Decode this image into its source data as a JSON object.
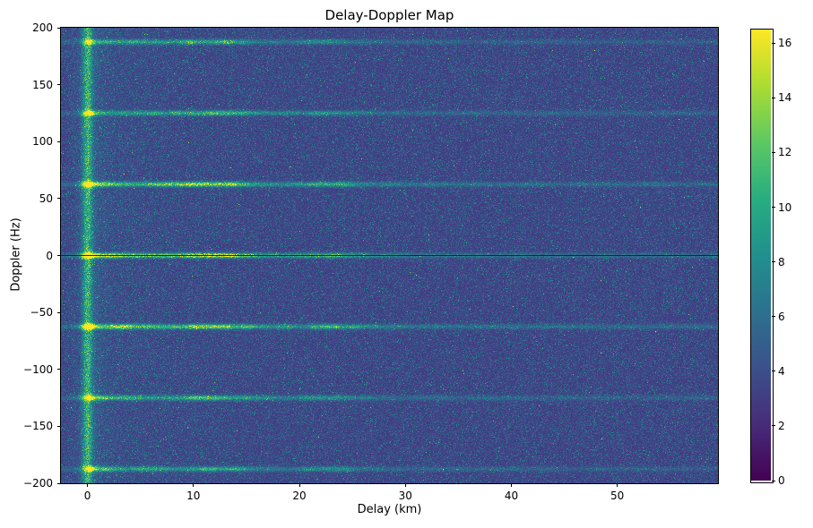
{
  "chart_data": {
    "type": "heatmap",
    "title": "Delay-Doppler Map",
    "xlabel": "Delay (km)",
    "ylabel": "Doppler (Hz)",
    "x_range": [
      -2.5,
      59.5
    ],
    "y_range": [
      -200,
      200
    ],
    "clim": [
      0,
      16.5
    ],
    "colormap": "viridis",
    "x_ticks": [
      0,
      10,
      20,
      30,
      40,
      50
    ],
    "y_ticks": [
      200,
      150,
      100,
      50,
      0,
      -50,
      -100,
      -150,
      -200
    ],
    "colorbar_ticks": [
      0,
      2,
      4,
      6,
      8,
      10,
      12,
      14,
      16
    ],
    "noise_floor_mean": 4.0,
    "vertical_stripe_delay_km": 0,
    "zero_doppler_null": true,
    "doppler_lines": [
      {
        "f": 187.5,
        "amp": 6.2,
        "inter": 5.5
      },
      {
        "f": 125.0,
        "amp": 6.8,
        "inter": 6.5
      },
      {
        "f": 62.5,
        "amp": 9.2,
        "inter": 8.5
      },
      {
        "f": 0.0,
        "amp": 10.5,
        "inter": 10.0
      },
      {
        "f": -62.5,
        "amp": 9.6,
        "inter": 9.0
      },
      {
        "f": -125.0,
        "amp": 7.2,
        "inter": 6.5
      },
      {
        "f": -187.5,
        "amp": 6.2,
        "inter": 5.5
      }
    ],
    "viridis_stops": [
      [
        68,
        1,
        84
      ],
      [
        71,
        44,
        122
      ],
      [
        59,
        81,
        139
      ],
      [
        44,
        113,
        142
      ],
      [
        33,
        144,
        141
      ],
      [
        39,
        173,
        129
      ],
      [
        92,
        200,
        99
      ],
      [
        170,
        220,
        50
      ],
      [
        253,
        231,
        37
      ]
    ]
  }
}
